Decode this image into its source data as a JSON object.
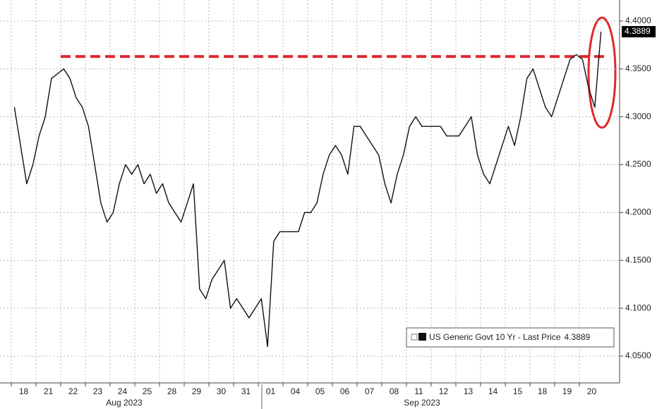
{
  "chart_data": {
    "type": "line",
    "categories": [
      "18",
      null,
      null,
      null,
      "21",
      null,
      null,
      null,
      "22",
      null,
      null,
      null,
      "23",
      null,
      null,
      null,
      "24",
      null,
      null,
      null,
      "25",
      null,
      null,
      null,
      "28",
      null,
      null,
      null,
      "29",
      null,
      null,
      null,
      "30",
      null,
      null,
      null,
      "31",
      null,
      null,
      null,
      "01",
      null,
      null,
      null,
      "04",
      null,
      null,
      null,
      "05",
      null,
      null,
      null,
      "06",
      null,
      null,
      null,
      "07",
      null,
      null,
      null,
      "08",
      null,
      null,
      null,
      "11",
      null,
      null,
      null,
      "12",
      null,
      null,
      null,
      "13",
      null,
      null,
      null,
      "14",
      null,
      null,
      null,
      "15",
      null,
      null,
      null,
      "18",
      null,
      null,
      null,
      "19",
      null,
      null,
      null,
      "20",
      null,
      null,
      null
    ],
    "month_labels": [
      "Aug 2023",
      "Sep 2023"
    ],
    "series": [
      {
        "name": "US Generic Govt 10 Yr - Last Price",
        "color": "#111111",
        "values": [
          4.31,
          4.27,
          4.23,
          4.25,
          4.28,
          4.3,
          4.34,
          4.345,
          4.35,
          4.34,
          4.32,
          4.31,
          4.29,
          4.25,
          4.21,
          4.19,
          4.2,
          4.23,
          4.25,
          4.24,
          4.25,
          4.23,
          4.24,
          4.22,
          4.23,
          4.21,
          4.2,
          4.19,
          4.21,
          4.23,
          4.12,
          4.11,
          4.13,
          4.14,
          4.15,
          4.1,
          4.11,
          4.1,
          4.09,
          4.1,
          4.11,
          4.06,
          4.17,
          4.18,
          4.18,
          4.18,
          4.18,
          4.2,
          4.2,
          4.21,
          4.24,
          4.26,
          4.27,
          4.26,
          4.24,
          4.29,
          4.29,
          4.28,
          4.27,
          4.26,
          4.23,
          4.21,
          4.24,
          4.26,
          4.29,
          4.3,
          4.29,
          4.29,
          4.29,
          4.29,
          4.28,
          4.28,
          4.28,
          4.29,
          4.3,
          4.26,
          4.24,
          4.23,
          4.25,
          4.27,
          4.29,
          4.27,
          4.3,
          4.34,
          4.35,
          4.33,
          4.31,
          4.3,
          4.32,
          4.34,
          4.36,
          4.365,
          4.36,
          4.33,
          4.31,
          4.3889
        ]
      }
    ],
    "reference_line": {
      "value": 4.363,
      "color": "#e0282e"
    },
    "ylim": [
      4.022,
      4.422
    ],
    "yticks": [
      {
        "value": 4.05,
        "label": "4.0500"
      },
      {
        "value": 4.1,
        "label": "4.1000"
      },
      {
        "value": 4.15,
        "label": "4.1500"
      },
      {
        "value": 4.2,
        "label": "4.2000"
      },
      {
        "value": 4.25,
        "label": "4.2500"
      },
      {
        "value": 4.3,
        "label": "4.3000"
      },
      {
        "value": 4.35,
        "label": "4.3500"
      },
      {
        "value": 4.4,
        "label": "4.4000"
      }
    ],
    "grid": true
  }
}
